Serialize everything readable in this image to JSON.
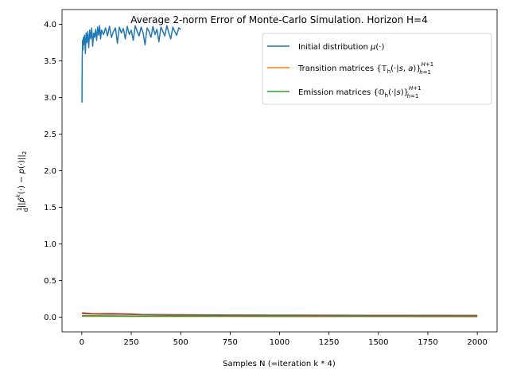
{
  "chart_data": {
    "type": "line",
    "title": "Average 2-norm Error of Monte-Carlo Simulation. Horizon H=4",
    "xlabel": "Samples N (=iteration k * 4)",
    "ylabel": "(1/d)||p̂^k(·) − p(·)||₂",
    "xlim": [
      -100,
      2100
    ],
    "ylim": [
      -0.2,
      4.2
    ],
    "xticks": [
      0,
      250,
      500,
      750,
      1000,
      1250,
      1500,
      1750,
      2000
    ],
    "yticks": [
      0.0,
      0.5,
      1.0,
      1.5,
      2.0,
      2.5,
      3.0,
      3.5,
      4.0
    ],
    "grid": false,
    "legend_position": "upper-right",
    "series": [
      {
        "name": "Initial distribution μ(·)",
        "color": "#1f77b4",
        "x": [
          1,
          2,
          4,
          6,
          8,
          10,
          14,
          18,
          22,
          26,
          30,
          35,
          40,
          45,
          50,
          55,
          60,
          65,
          70,
          75,
          80,
          85,
          90,
          95,
          100,
          110,
          120,
          130,
          140,
          150,
          160,
          170,
          180,
          190,
          200,
          210,
          220,
          230,
          240,
          250,
          260,
          270,
          280,
          290,
          300,
          310,
          320,
          330,
          340,
          350,
          360,
          370,
          380,
          390,
          400,
          410,
          420,
          430,
          440,
          450,
          460,
          470,
          480,
          490,
          500
        ],
        "y": [
          2.93,
          3.55,
          3.78,
          3.65,
          3.82,
          3.72,
          3.85,
          3.6,
          3.88,
          3.75,
          3.9,
          3.68,
          3.92,
          3.8,
          3.95,
          3.7,
          3.88,
          3.82,
          3.93,
          3.78,
          3.96,
          3.85,
          3.98,
          3.8,
          3.92,
          3.86,
          3.95,
          3.84,
          3.97,
          3.82,
          3.9,
          3.95,
          3.74,
          3.96,
          3.88,
          3.94,
          3.8,
          3.97,
          3.86,
          3.92,
          3.78,
          3.98,
          3.9,
          3.84,
          3.96,
          3.88,
          3.72,
          3.95,
          3.9,
          3.82,
          3.97,
          3.86,
          3.93,
          3.76,
          3.96,
          3.9,
          3.84,
          3.98,
          3.88,
          3.8,
          3.96,
          3.9,
          3.85,
          3.95,
          3.93
        ]
      },
      {
        "name": "Transition matrices {𝕋h(·|s,a)}ₕ₌₁^{H+1}",
        "color": "#ff7f0e",
        "x": [
          1,
          100,
          250,
          500,
          750,
          1000,
          1250,
          1500,
          1750,
          2000
        ],
        "y": [
          0.012,
          0.012,
          0.011,
          0.01,
          0.01,
          0.009,
          0.009,
          0.009,
          0.008,
          0.008
        ]
      },
      {
        "name": "Emission matrices {𝕆h(·|s)}ₕ₌₁^{H+1}",
        "color": "#2ca02c",
        "x": [
          1,
          100,
          250,
          500,
          750,
          1000,
          1250,
          1500,
          1750,
          2000
        ],
        "y": [
          0.02,
          0.018,
          0.016,
          0.015,
          0.014,
          0.013,
          0.013,
          0.012,
          0.012,
          0.012
        ]
      },
      {
        "name": "",
        "color": "#d62728",
        "x": [
          1,
          50,
          100,
          150,
          200,
          250,
          300,
          400,
          500,
          750,
          1000,
          1250,
          1500,
          1750,
          2000
        ],
        "y": [
          0.06,
          0.05,
          0.048,
          0.05,
          0.047,
          0.045,
          0.038,
          0.035,
          0.033,
          0.03,
          0.028,
          0.027,
          0.026,
          0.025,
          0.024
        ]
      },
      {
        "name": "",
        "color": "#8c564b",
        "x": [
          1,
          50,
          100,
          200,
          300,
          500,
          750,
          1000,
          1250,
          1500,
          1750,
          2000
        ],
        "y": [
          0.05,
          0.045,
          0.042,
          0.04,
          0.035,
          0.03,
          0.027,
          0.025,
          0.024,
          0.023,
          0.022,
          0.021
        ]
      }
    ]
  }
}
